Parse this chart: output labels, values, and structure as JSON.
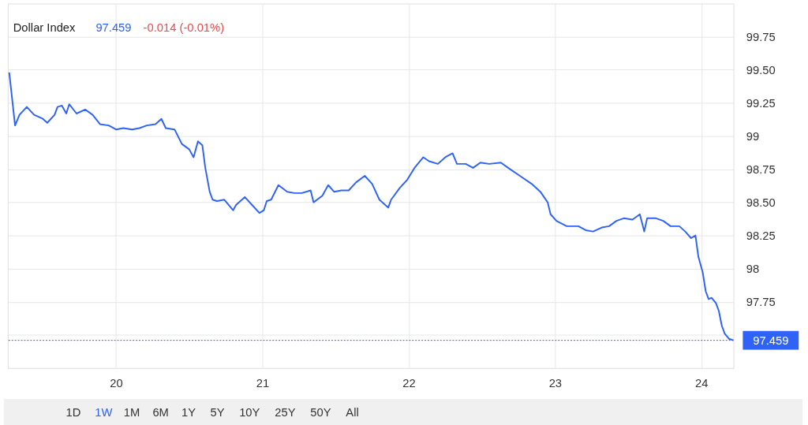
{
  "chart_data": {
    "type": "line",
    "title": "Dollar Index",
    "annotations": [
      "97.459",
      "-0.014 (-0.01%)",
      "1D",
      "1W",
      "1M",
      "6M",
      "1Y",
      "5Y",
      "10Y",
      "25Y",
      "50Y",
      "All"
    ],
    "x": [
      19.27,
      19.31,
      19.34,
      19.39,
      19.44,
      19.5,
      19.53,
      19.58,
      19.6,
      19.63,
      19.66,
      19.68,
      19.73,
      19.79,
      19.84,
      19.89,
      19.95,
      20.0,
      20.05,
      20.11,
      20.16,
      20.21,
      20.27,
      20.31,
      20.34,
      20.4,
      20.45,
      20.5,
      20.53,
      20.56,
      20.59,
      20.61,
      20.64,
      20.66,
      20.69,
      20.74,
      20.8,
      20.82,
      20.88,
      20.93,
      20.98,
      21.01,
      21.03,
      21.06,
      21.11,
      21.17,
      21.22,
      21.27,
      21.33,
      21.35,
      21.41,
      21.45,
      21.49,
      21.54,
      21.59,
      21.64,
      21.7,
      21.75,
      21.8,
      21.86,
      21.88,
      21.94,
      21.99,
      22.04,
      22.1,
      22.14,
      22.2,
      22.25,
      22.3,
      22.33,
      22.39,
      22.44,
      22.49,
      22.55,
      22.63,
      22.68,
      22.76,
      22.84,
      22.9,
      22.95,
      22.97,
      23.01,
      23.08,
      23.16,
      23.21,
      23.26,
      23.32,
      23.37,
      23.42,
      23.47,
      23.53,
      23.58,
      23.61,
      23.63,
      23.69,
      23.74,
      23.79,
      23.85,
      23.89,
      23.93,
      23.96,
      23.98,
      24.01,
      24.03,
      24.05,
      24.07,
      24.1,
      24.12,
      24.14,
      24.16,
      24.19,
      24.22
    ],
    "series": [
      {
        "color": "#2e63f5",
        "values": [
          99.48,
          99.08,
          99.16,
          99.22,
          99.16,
          99.13,
          99.1,
          99.16,
          99.22,
          99.23,
          99.17,
          99.24,
          99.17,
          99.2,
          99.16,
          99.09,
          99.08,
          99.05,
          99.06,
          99.05,
          99.06,
          99.08,
          99.09,
          99.13,
          99.06,
          99.05,
          98.94,
          98.9,
          98.84,
          98.96,
          98.93,
          98.76,
          98.58,
          98.52,
          98.51,
          98.52,
          98.44,
          98.48,
          98.54,
          98.48,
          98.42,
          98.44,
          98.51,
          98.52,
          98.63,
          98.58,
          98.57,
          98.57,
          98.59,
          98.5,
          98.55,
          98.63,
          98.58,
          98.59,
          98.59,
          98.65,
          98.7,
          98.64,
          98.52,
          98.46,
          98.52,
          98.61,
          98.67,
          98.76,
          98.84,
          98.81,
          98.79,
          98.84,
          98.87,
          98.79,
          98.79,
          98.76,
          98.8,
          98.79,
          98.8,
          98.76,
          98.7,
          98.64,
          98.58,
          98.5,
          98.41,
          98.36,
          98.32,
          98.32,
          98.29,
          98.28,
          98.31,
          98.32,
          98.36,
          98.38,
          98.37,
          98.41,
          98.28,
          98.38,
          98.38,
          98.36,
          98.32,
          98.32,
          98.28,
          98.23,
          98.25,
          98.09,
          97.97,
          97.83,
          97.77,
          97.78,
          97.74,
          97.68,
          97.57,
          97.51,
          97.47,
          97.459
        ]
      }
    ],
    "xlim": [
      19.26,
      24.22
    ],
    "xticks": [
      20,
      21,
      22,
      23,
      24
    ],
    "ylim": [
      97.25,
      100
    ],
    "yticks": [
      {
        "value": 97.5,
        "label": null
      },
      97.75,
      98,
      98.25,
      {
        "value": 98.5,
        "label": "98.50"
      },
      98.75,
      99,
      99.25,
      {
        "value": 99.5,
        "label": "99.50"
      },
      99.75
    ],
    "ref_lines": [
      {
        "axis": "y",
        "value": 97.459,
        "label": "97.459",
        "color": "#2e63f5",
        "line_style": "dotted"
      }
    ],
    "grid": true,
    "marker": "none",
    "line_style": "solid"
  }
}
